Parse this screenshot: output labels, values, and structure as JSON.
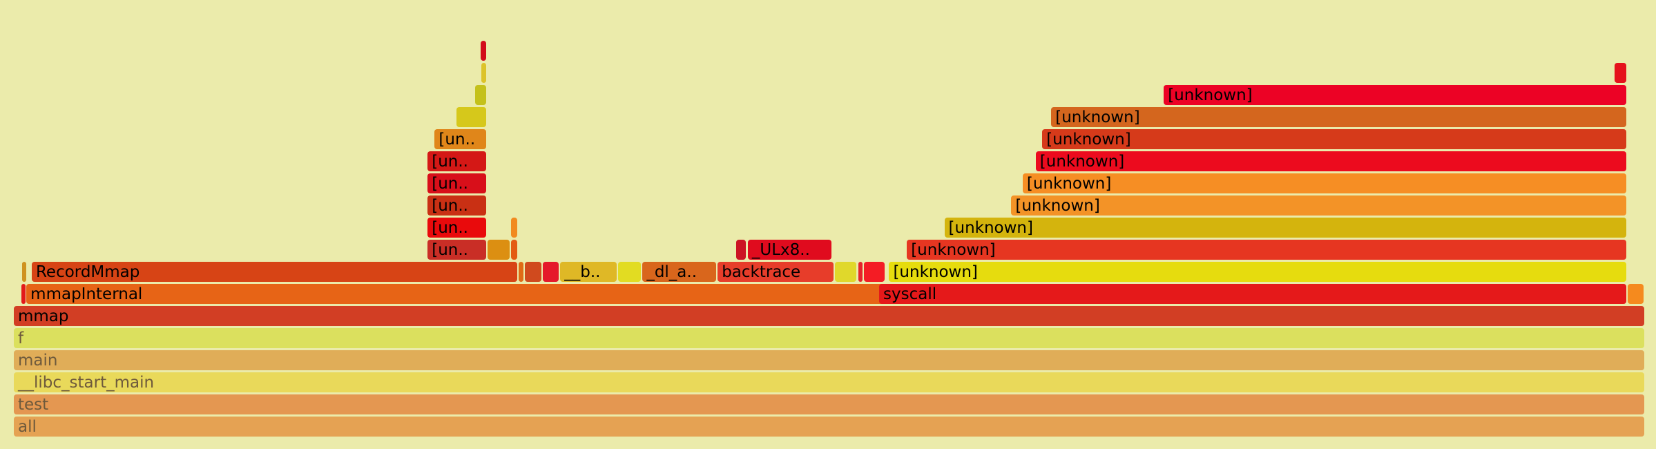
{
  "chart_data": {
    "type": "flamegraph",
    "title": "",
    "xlabel": "",
    "ylabel": "",
    "total_width": 1000,
    "frames": [
      {
        "name": "all",
        "x": 0,
        "w": 1000,
        "depth": 0,
        "color": "#e5a253",
        "dim": true
      },
      {
        "name": "test",
        "x": 0,
        "w": 1000,
        "depth": 1,
        "color": "#e49751",
        "dim": true
      },
      {
        "name": "__libc_start_main",
        "x": 0,
        "w": 1000,
        "depth": 2,
        "color": "#e9d95a",
        "dim": true
      },
      {
        "name": "main",
        "x": 0,
        "w": 1000,
        "depth": 3,
        "color": "#e0ad58",
        "dim": true
      },
      {
        "name": "f",
        "x": 0,
        "w": 1000,
        "depth": 4,
        "color": "#dbe05e",
        "dim": true
      },
      {
        "name": "mmap",
        "x": 0,
        "w": 1000,
        "depth": 5,
        "color": "#d23e24"
      },
      {
        "name": "",
        "x": 4.8,
        "w": 2.0,
        "depth": 6,
        "color": "#e31a1a"
      },
      {
        "name": "mmapInternal",
        "x": 7.7,
        "w": 531.9,
        "depth": 6,
        "color": "#e76416"
      },
      {
        "name": "syscall",
        "x": 530.5,
        "w": 458.4,
        "depth": 6,
        "color": "#e5191a"
      },
      {
        "name": "",
        "x": 989.5,
        "w": 10.0,
        "depth": 6,
        "color": "#f58a1e"
      },
      {
        "name": "",
        "x": 5.0,
        "w": 3.0,
        "depth": 7,
        "color": "#cf9220"
      },
      {
        "name": "RecordMmap",
        "x": 11.0,
        "w": 298.0,
        "depth": 7,
        "color": "#d74415"
      },
      {
        "name": "",
        "x": 309.5,
        "w": 3.5,
        "depth": 7,
        "color": "#e06b16"
      },
      {
        "name": "",
        "x": 313.5,
        "w": 10.5,
        "depth": 7,
        "color": "#d04a1e"
      },
      {
        "name": "",
        "x": 324.3,
        "w": 10.0,
        "depth": 7,
        "color": "#e5192a"
      },
      {
        "name": "__b..",
        "x": 335.0,
        "w": 35.0,
        "depth": 7,
        "color": "#dfb826"
      },
      {
        "name": "",
        "x": 370.5,
        "w": 14.5,
        "depth": 7,
        "color": "#e2dc22"
      },
      {
        "name": "_dl_a..",
        "x": 385.4,
        "w": 45.5,
        "depth": 7,
        "color": "#d9661c"
      },
      {
        "name": "backtrace",
        "x": 431.5,
        "w": 71.5,
        "depth": 7,
        "color": "#e73d2a"
      },
      {
        "name": "",
        "x": 503.5,
        "w": 13.5,
        "depth": 7,
        "color": "#e0d82b"
      },
      {
        "name": "",
        "x": 517.6,
        "w": 2.5,
        "depth": 7,
        "color": "#e5232b"
      },
      {
        "name": "",
        "x": 521.0,
        "w": 13.3,
        "depth": 7,
        "color": "#f41c24"
      },
      {
        "name": "[unknown]",
        "x": 536.6,
        "w": 452.3,
        "depth": 7,
        "color": "#e6dc0e"
      },
      {
        "name": "[un..",
        "x": 253.7,
        "w": 36.3,
        "depth": 8,
        "color": "#c92e26"
      },
      {
        "name": "",
        "x": 290.5,
        "w": 14.0,
        "depth": 8,
        "color": "#dc8f12"
      },
      {
        "name": "",
        "x": 305.0,
        "w": 4.0,
        "depth": 8,
        "color": "#e35b12"
      },
      {
        "name": "",
        "x": 443.0,
        "w": 6.2,
        "depth": 8,
        "color": "#cc1424"
      },
      {
        "name": "_ULx8..",
        "x": 450.0,
        "w": 51.5,
        "depth": 8,
        "color": "#e00b1e"
      },
      {
        "name": "[unknown]",
        "x": 547.5,
        "w": 441.4,
        "depth": 8,
        "color": "#e63621"
      },
      {
        "name": "[un..",
        "x": 253.7,
        "w": 36.3,
        "depth": 9,
        "color": "#e90a0c"
      },
      {
        "name": "",
        "x": 305.0,
        "w": 4.0,
        "depth": 9,
        "color": "#f18a1f"
      },
      {
        "name": "[unknown]",
        "x": 570.5,
        "w": 418.4,
        "depth": 9,
        "color": "#d4b40d"
      },
      {
        "name": "[un..",
        "x": 253.7,
        "w": 36.3,
        "depth": 10,
        "color": "#c93014"
      },
      {
        "name": "[unknown]",
        "x": 611.5,
        "w": 377.4,
        "depth": 10,
        "color": "#f39327"
      },
      {
        "name": "[un..",
        "x": 253.7,
        "w": 36.3,
        "depth": 11,
        "color": "#d80f1a"
      },
      {
        "name": "[unknown]",
        "x": 618.5,
        "w": 370.4,
        "depth": 11,
        "color": "#f68e24"
      },
      {
        "name": "[un..",
        "x": 253.7,
        "w": 36.3,
        "depth": 12,
        "color": "#d41816"
      },
      {
        "name": "[unknown]",
        "x": 626.5,
        "w": 362.4,
        "depth": 12,
        "color": "#ec0b1e"
      },
      {
        "name": "[un..",
        "x": 258.0,
        "w": 32.0,
        "depth": 13,
        "color": "#e0861a"
      },
      {
        "name": "[unknown]",
        "x": 630.5,
        "w": 358.4,
        "depth": 13,
        "color": "#d63a1a"
      },
      {
        "name": "",
        "x": 271.5,
        "w": 18.5,
        "depth": 14,
        "color": "#d6c81b"
      },
      {
        "name": "[unknown]",
        "x": 636.0,
        "w": 352.9,
        "depth": 14,
        "color": "#d4661e"
      },
      {
        "name": "",
        "x": 283.0,
        "w": 7.0,
        "depth": 15,
        "color": "#c4c11b"
      },
      {
        "name": "[unknown]",
        "x": 705.0,
        "w": 283.9,
        "depth": 15,
        "color": "#ec0225"
      },
      {
        "name": "",
        "x": 286.5,
        "w": 3.5,
        "depth": 16,
        "color": "#dcc329"
      },
      {
        "name": "",
        "x": 981.5,
        "w": 7.4,
        "depth": 16,
        "color": "#e5121b"
      },
      {
        "name": "",
        "x": 286.0,
        "w": 4.0,
        "depth": 17,
        "color": "#d20c1a"
      }
    ]
  }
}
